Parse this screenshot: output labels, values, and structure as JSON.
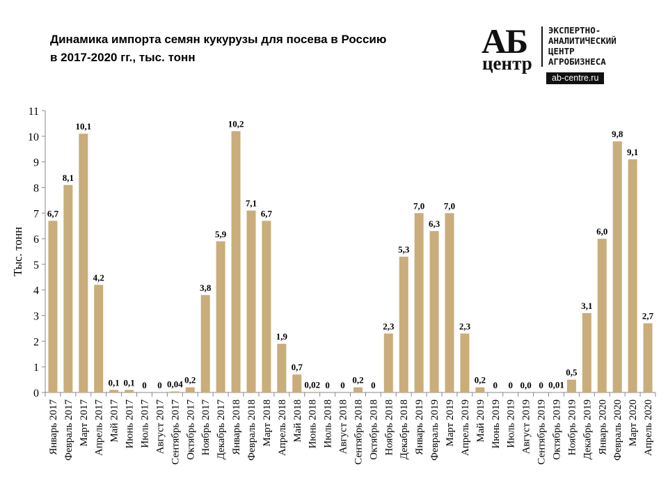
{
  "title_lines": [
    "Динамика импорта семян кукурузы для посева в Россию",
    "в 2017-2020 гг., тыс. тонн"
  ],
  "logo": {
    "mark": "АБ",
    "word": "центр",
    "lines": [
      "ЭКСПЕРТНО-",
      "АНАЛИТИЧЕСКИЙ",
      "ЦЕНТР",
      "АГРОБИЗНЕСА"
    ],
    "site": "ab-centre.ru"
  },
  "chart_data": {
    "type": "bar",
    "title": "Динамика импорта семян кукурузы для посева в Россию в 2017-2020 гг., тыс. тонн",
    "xlabel": "",
    "ylabel": "Тыс. тонн",
    "ylim": [
      0,
      11
    ],
    "yticks": [
      0,
      1,
      2,
      3,
      4,
      5,
      6,
      7,
      8,
      9,
      10,
      11
    ],
    "bar_color": "#C9AD7A",
    "categories": [
      "Январь 2017",
      "Февраль 2017",
      "Март 2017",
      "Апрель 2017",
      "Май 2017",
      "Июнь 2017",
      "Июль 2017",
      "Август 2017",
      "Сентябрь 2017",
      "Октябрь 2017",
      "Ноябрь 2017",
      "Декабрь 2017",
      "Январь 2018",
      "Февраль 2018",
      "Март 2018",
      "Апрель 2018",
      "Май 2018",
      "Июнь 2018",
      "Июль 2018",
      "Август 2018",
      "Сентябрь 2018",
      "Октябрь 2018",
      "Ноябрь 2018",
      "Декабрь 2018",
      "Январь 2019",
      "Февраль 2019",
      "Март 2019",
      "Апрель 2019",
      "Май 2019",
      "Июнь 2019",
      "Июль 2019",
      "Август 2019",
      "Сентябрь 2019",
      "Октябрь 2019",
      "Ноябрь 2019",
      "Декабрь 2019",
      "Январь 2020",
      "Февраль 2020",
      "Март 2020",
      "Апрель 2020"
    ],
    "values": [
      6.7,
      8.1,
      10.1,
      4.2,
      0.1,
      0.1,
      0,
      0,
      0.04,
      0.2,
      3.8,
      5.9,
      10.2,
      7.1,
      6.7,
      1.9,
      0.7,
      0.02,
      0,
      0,
      0.2,
      0,
      2.3,
      5.3,
      7.0,
      6.3,
      7.0,
      2.3,
      0.2,
      0,
      0,
      0.0,
      0,
      0.01,
      0.5,
      3.1,
      6.0,
      9.8,
      9.1,
      2.7
    ],
    "labels": [
      "6,7",
      "8,1",
      "10,1",
      "4,2",
      "0,1",
      "0,1",
      "0",
      "0",
      "0,04",
      "0,2",
      "3,8",
      "5,9",
      "10,2",
      "7,1",
      "6,7",
      "1,9",
      "0,7",
      "0,02",
      "0",
      "0",
      "0,2",
      "0",
      "2,3",
      "5,3",
      "7,0",
      "6,3",
      "7,0",
      "2,3",
      "0,2",
      "0",
      "0",
      "0,0",
      "0",
      "0,01",
      "0,5",
      "3,1",
      "6,0",
      "9,8",
      "9,1",
      "2,7"
    ]
  }
}
